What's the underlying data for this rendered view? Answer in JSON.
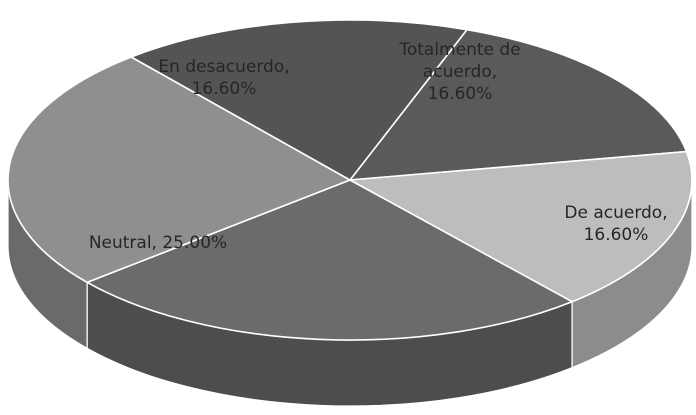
{
  "chart_data": {
    "type": "pie",
    "style": "3d-tilted",
    "title": "",
    "legend": "none",
    "slices": [
      {
        "name": "Totalmente de acuerdo",
        "value": 16.6,
        "value_label": "16.60%",
        "label_lines": [
          "Totalmente de",
          "acuerdo,",
          "16.60%"
        ],
        "color": "#5a5a5a",
        "side_color": "#404040"
      },
      {
        "name": "De acuerdo",
        "value": 16.6,
        "value_label": "16.60%",
        "label_lines": [
          "De acuerdo,",
          "16.60%"
        ],
        "color": "#bdbdbd",
        "side_color": "#8c8c8c"
      },
      {
        "name": "Unlabeled slice",
        "value": 25.2,
        "value_label": "",
        "label_lines": [],
        "color": "#6b6b6b",
        "side_color": "#4d4d4d"
      },
      {
        "name": "Neutral",
        "value": 25.0,
        "value_label": "25.00%",
        "label_lines": [
          "Neutral, 25.00%"
        ],
        "color": "#8f8f8f",
        "side_color": "#6a6a6a"
      },
      {
        "name": "En desacuerdo",
        "value": 16.6,
        "value_label": "16.60%",
        "label_lines": [
          "En desacuerdo,",
          "16.60%"
        ],
        "color": "#545454",
        "side_color": "#3a3a3a"
      }
    ]
  }
}
